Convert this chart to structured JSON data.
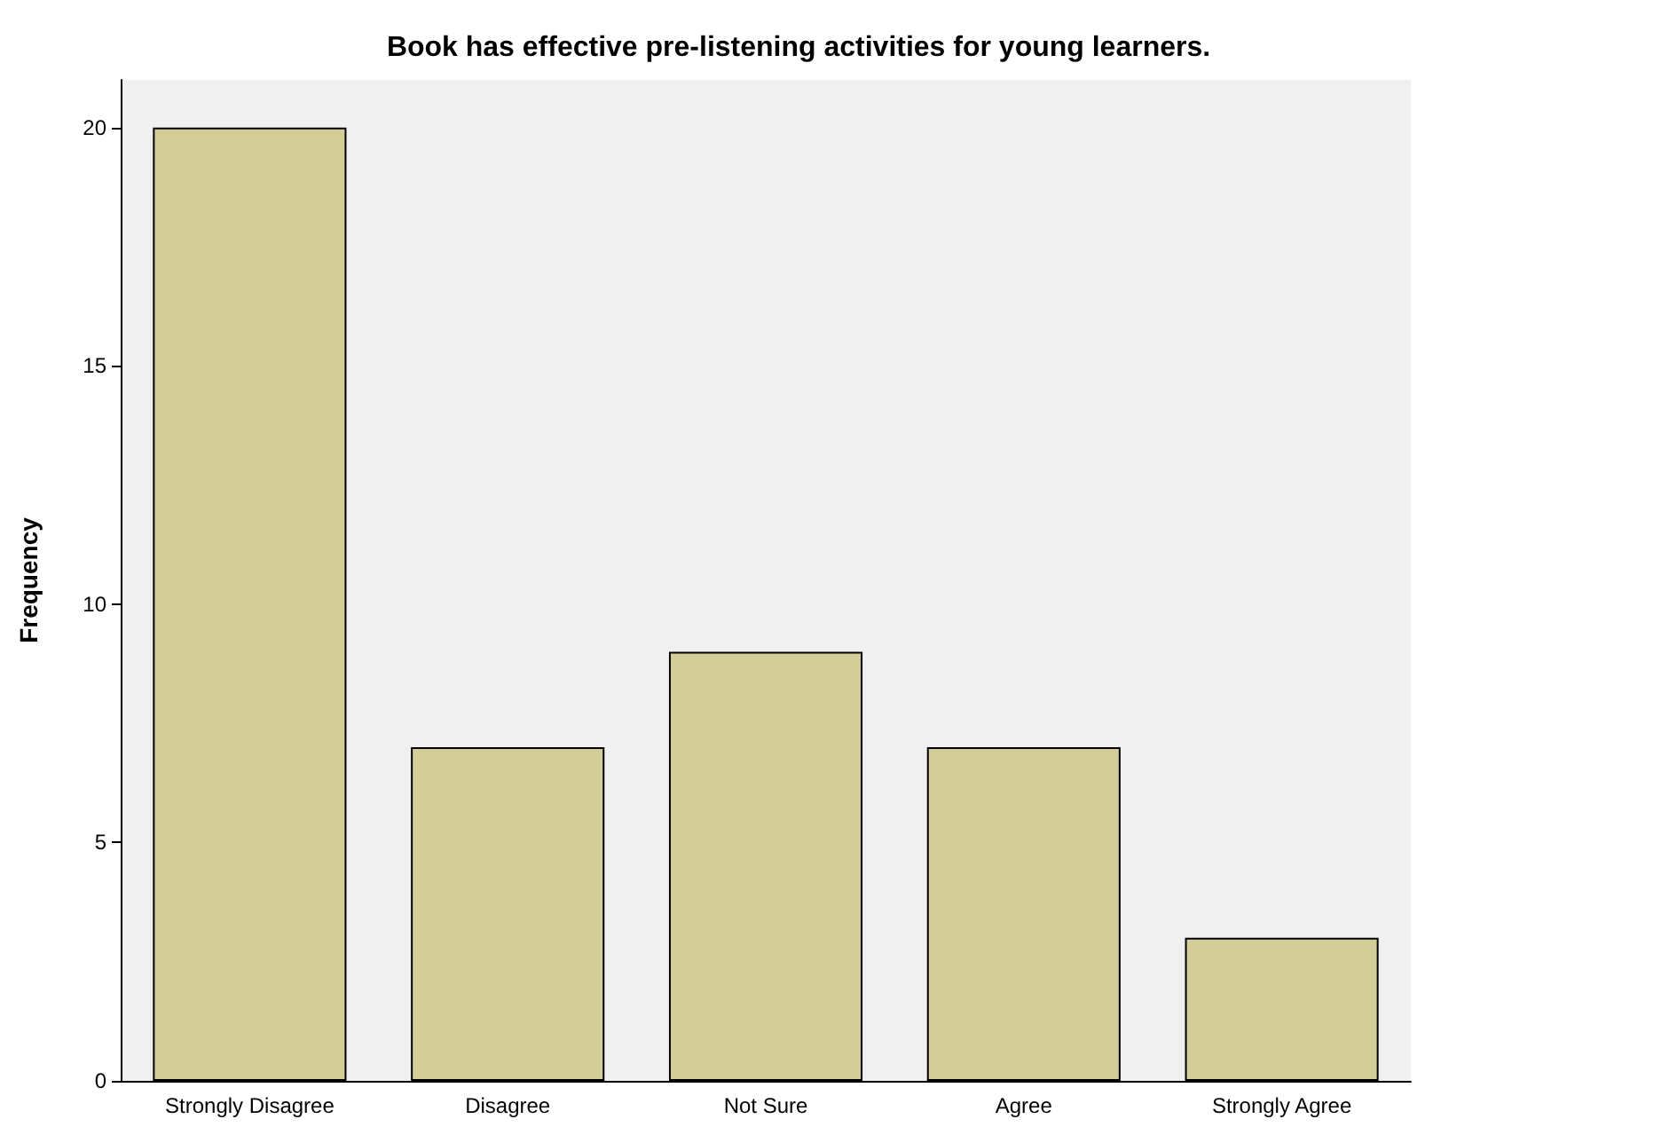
{
  "chart_data": {
    "type": "bar",
    "title": "Book has effective pre-listening activities for young learners.",
    "ylabel": "Frequency",
    "categories": [
      "Strongly Disagree",
      "Disagree",
      "Not Sure",
      "Agree",
      "Strongly Agree"
    ],
    "values": [
      20,
      7,
      9,
      7,
      3
    ],
    "color": "#d3ce99",
    "ylim": [
      0,
      21
    ],
    "yticks": [
      0,
      5,
      10,
      15,
      20
    ]
  }
}
